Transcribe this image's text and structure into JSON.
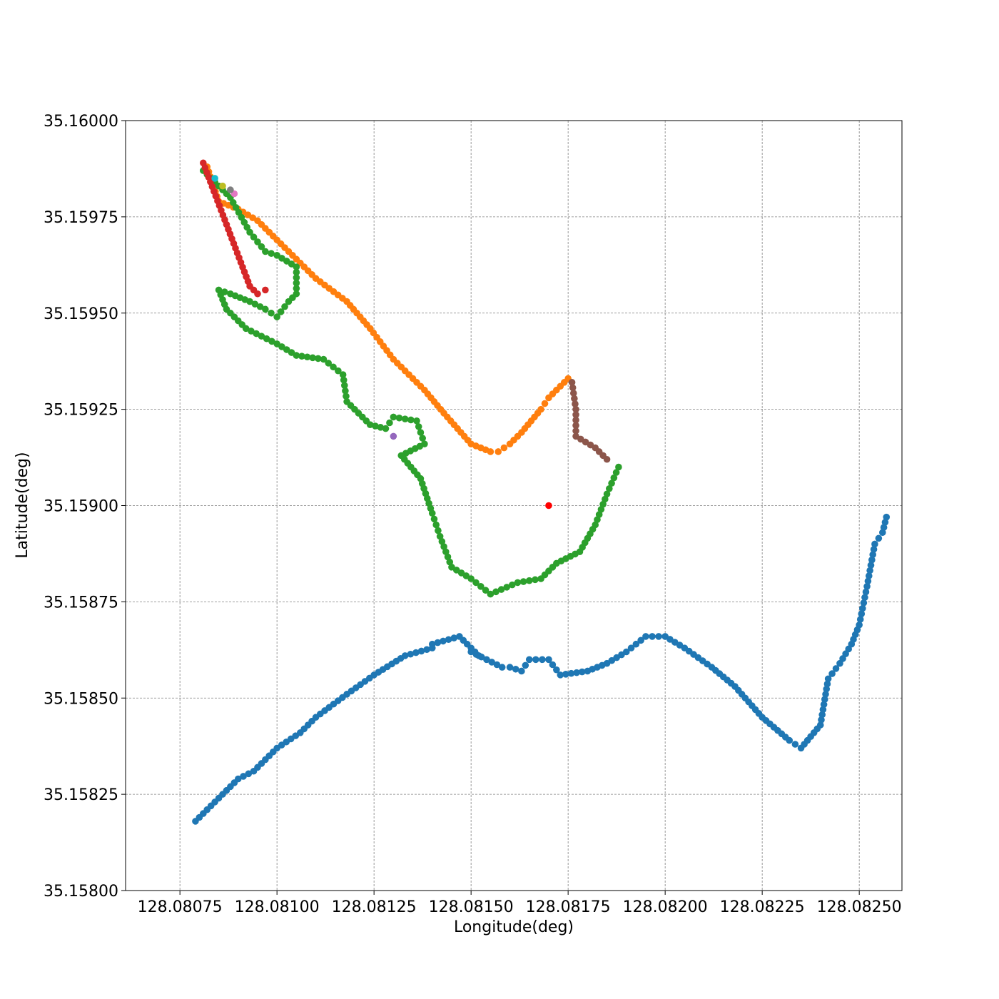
{
  "chart_data": {
    "type": "scatter",
    "title": "",
    "xlabel": "Longitude(deg)",
    "ylabel": "Latitude(deg)",
    "xlim": [
      128.08061,
      128.08261
    ],
    "ylim": [
      35.158,
      35.16
    ],
    "grid": true,
    "legend": "none",
    "x_ticks": [
      128.08075,
      128.081,
      128.08125,
      128.0815,
      128.08175,
      128.082,
      128.08225,
      128.0825
    ],
    "x_tick_labels": [
      "128.08075",
      "128.08100",
      "128.08125",
      "128.08150",
      "128.08175",
      "128.08200",
      "128.08225",
      "128.08250"
    ],
    "y_ticks": [
      35.158,
      35.15825,
      35.1585,
      35.15875,
      35.159,
      35.15925,
      35.1595,
      35.15975,
      35.16
    ],
    "y_tick_labels": [
      "35.15800",
      "35.15825",
      "35.15850",
      "35.15875",
      "35.15900",
      "35.15925",
      "35.15950",
      "35.15975",
      "35.16000"
    ],
    "series": [
      {
        "color": "#1f77b4",
        "points": [
          [
            128.08079,
            35.15818
          ],
          [
            128.08086,
            35.15825
          ],
          [
            128.0809,
            35.15829
          ],
          [
            128.08094,
            35.15831
          ],
          [
            128.081,
            35.15837
          ],
          [
            128.08106,
            35.15841
          ],
          [
            128.0811,
            35.15845
          ],
          [
            128.08118,
            35.15851
          ],
          [
            128.08125,
            35.15856
          ],
          [
            128.08133,
            35.15861
          ],
          [
            128.0814,
            35.15863
          ],
          [
            128.0814,
            35.15864
          ],
          [
            128.08147,
            35.15866
          ],
          [
            128.08152,
            35.15861
          ],
          [
            128.0815,
            35.15862
          ],
          [
            128.08158,
            35.15858
          ],
          [
            128.0816,
            35.15858
          ],
          [
            128.08163,
            35.15857
          ],
          [
            128.08165,
            35.1586
          ],
          [
            128.0817,
            35.1586
          ],
          [
            128.08173,
            35.15856
          ],
          [
            128.0818,
            35.15857
          ],
          [
            128.08185,
            35.15859
          ],
          [
            128.0819,
            35.15862
          ],
          [
            128.08195,
            35.15866
          ],
          [
            128.082,
            35.15866
          ],
          [
            128.08205,
            35.15863
          ],
          [
            128.08212,
            35.15858
          ],
          [
            128.08218,
            35.15853
          ],
          [
            128.08225,
            35.15845
          ],
          [
            128.08232,
            35.15839
          ],
          [
            128.08235,
            35.15837
          ],
          [
            128.0824,
            35.15843
          ],
          [
            128.08242,
            35.15855
          ],
          [
            128.08245,
            35.15859
          ],
          [
            128.08248,
            35.15864
          ],
          [
            128.0825,
            35.15869
          ],
          [
            128.08252,
            35.15879
          ],
          [
            128.08254,
            35.1589
          ],
          [
            128.08256,
            35.15893
          ],
          [
            128.08257,
            35.15897
          ]
        ]
      },
      {
        "color": "#ff7f0e",
        "points": [
          [
            128.08082,
            35.15988
          ],
          [
            128.08085,
            35.15979
          ],
          [
            128.0809,
            35.15977
          ],
          [
            128.08095,
            35.15974
          ],
          [
            128.08102,
            35.15967
          ],
          [
            128.0811,
            35.15959
          ],
          [
            128.08118,
            35.15953
          ],
          [
            128.08124,
            35.15946
          ],
          [
            128.0813,
            35.15938
          ],
          [
            128.08138,
            35.1593
          ],
          [
            128.08143,
            35.15924
          ],
          [
            128.0815,
            35.15916
          ],
          [
            128.08155,
            35.15914
          ],
          [
            128.08157,
            35.15914
          ],
          [
            128.0816,
            35.15916
          ],
          [
            128.08163,
            35.15919
          ],
          [
            128.08168,
            35.15925
          ],
          [
            128.0817,
            35.15928
          ],
          [
            128.08175,
            35.15933
          ]
        ]
      },
      {
        "color": "#2ca02c",
        "points": [
          [
            128.08081,
            35.15987
          ],
          [
            128.08088,
            35.1598
          ],
          [
            128.08093,
            35.15971
          ],
          [
            128.08097,
            35.15966
          ],
          [
            128.081,
            35.15965
          ],
          [
            128.08105,
            35.15962
          ],
          [
            128.08105,
            35.15955
          ],
          [
            128.08103,
            35.15953
          ],
          [
            128.081,
            35.15949
          ],
          [
            128.08097,
            35.15951
          ],
          [
            128.08093,
            35.15953
          ],
          [
            128.08088,
            35.15955
          ],
          [
            128.08085,
            35.15956
          ],
          [
            128.08087,
            35.15951
          ],
          [
            128.08092,
            35.15946
          ],
          [
            128.081,
            35.15942
          ],
          [
            128.08105,
            35.15939
          ],
          [
            128.08112,
            35.15938
          ],
          [
            128.08117,
            35.15934
          ],
          [
            128.08118,
            35.15927
          ],
          [
            128.08124,
            35.15921
          ],
          [
            128.08128,
            35.1592
          ],
          [
            128.0813,
            35.15923
          ],
          [
            128.08136,
            35.15922
          ],
          [
            128.08138,
            35.15916
          ],
          [
            128.08132,
            35.15913
          ],
          [
            128.08137,
            35.15907
          ],
          [
            128.0814,
            35.15898
          ],
          [
            128.08142,
            35.15892
          ],
          [
            128.08145,
            35.15884
          ],
          [
            128.0815,
            35.15881
          ],
          [
            128.08155,
            35.15877
          ],
          [
            128.08162,
            35.1588
          ],
          [
            128.08168,
            35.15881
          ],
          [
            128.08172,
            35.15885
          ],
          [
            128.08178,
            35.15888
          ],
          [
            128.08182,
            35.15895
          ],
          [
            128.08185,
            35.15903
          ],
          [
            128.08188,
            35.1591
          ]
        ]
      },
      {
        "color": "#d62728",
        "points": [
          [
            128.08081,
            35.15989
          ],
          [
            128.08093,
            35.15957
          ],
          [
            128.08095,
            35.15955
          ],
          [
            128.08097,
            35.15956
          ]
        ]
      },
      {
        "color": "#9467bd",
        "points": [
          [
            128.0813,
            35.15918
          ]
        ]
      },
      {
        "color": "#8c564b",
        "points": [
          [
            128.08176,
            35.15932
          ],
          [
            128.08177,
            35.15925
          ],
          [
            128.08177,
            35.15918
          ],
          [
            128.08182,
            35.15915
          ],
          [
            128.08185,
            35.15912
          ]
        ]
      },
      {
        "color": "#e377c2",
        "points": [
          [
            128.08089,
            35.15981
          ]
        ]
      },
      {
        "color": "#7f7f7f",
        "points": [
          [
            128.08088,
            35.15982
          ]
        ]
      },
      {
        "color": "#bcbd22",
        "points": [
          [
            128.08086,
            35.15983
          ]
        ]
      },
      {
        "color": "#17becf",
        "points": [
          [
            128.08084,
            35.15985
          ]
        ]
      },
      {
        "color": "#ff0000",
        "points": [
          [
            128.0817,
            35.159
          ]
        ]
      }
    ]
  }
}
